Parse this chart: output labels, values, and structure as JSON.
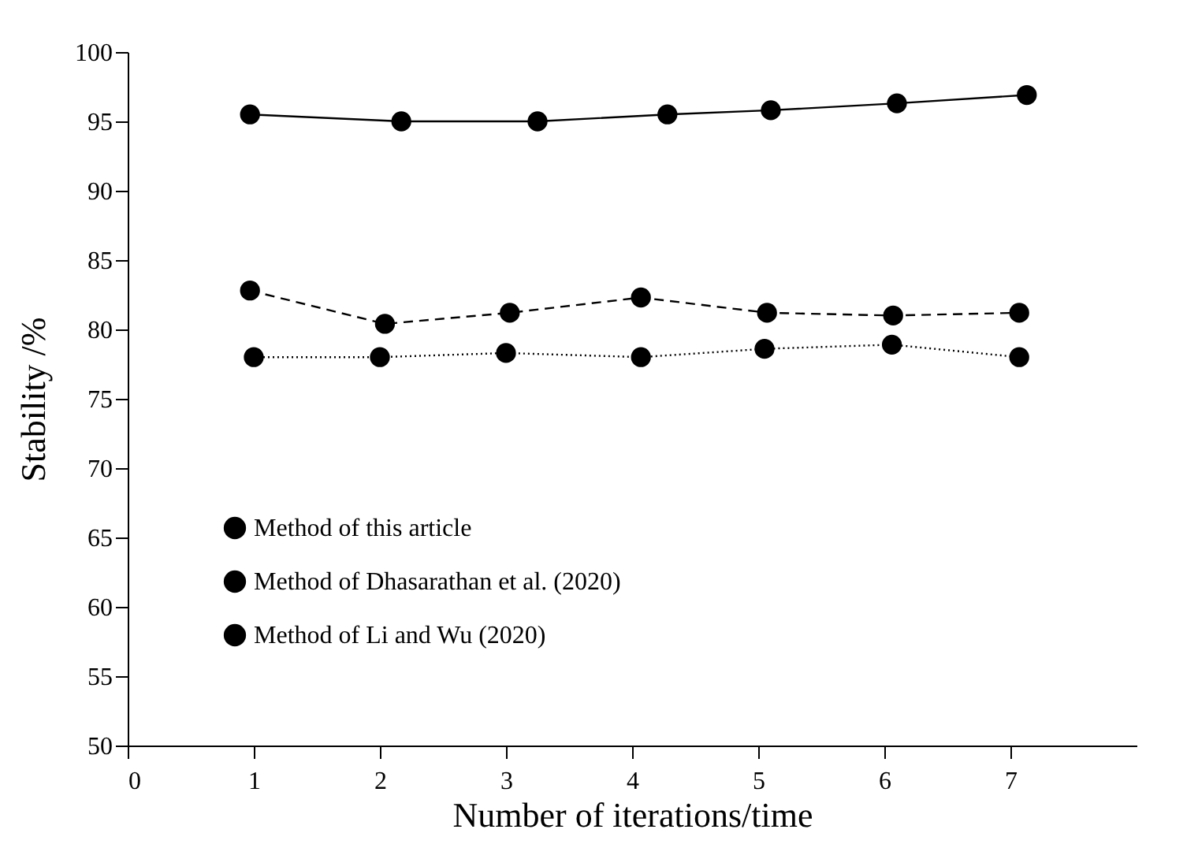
{
  "chart_data": {
    "type": "line",
    "xlabel": "Number of iterations/time",
    "ylabel": "Stability /%",
    "xlim": [
      0,
      8
    ],
    "xticks": [
      0,
      1,
      2,
      3,
      4,
      5,
      6,
      7
    ],
    "ylim": [
      50,
      100
    ],
    "yticks": [
      50,
      55,
      60,
      65,
      70,
      75,
      80,
      85,
      90,
      95,
      100
    ],
    "grid": false,
    "legend": "bottom left",
    "marker": "circle",
    "series": [
      {
        "name": "Method of this article",
        "color": "#000000",
        "line_style": "solid",
        "x": [
          0.97,
          2.17,
          3.25,
          4.28,
          5.1,
          6.1,
          7.13
        ],
        "values": [
          95.5,
          95.0,
          95.0,
          95.5,
          95.8,
          96.3,
          96.9
        ]
      },
      {
        "name": "Method of Dhasarathan et al. (2020)",
        "color": "#000000",
        "line_style": "dashed",
        "x": [
          0.97,
          2.04,
          3.03,
          4.07,
          5.07,
          6.07,
          7.07
        ],
        "values": [
          82.8,
          80.4,
          81.2,
          82.3,
          81.2,
          81.0,
          81.2
        ]
      },
      {
        "name": "Method of Li and Wu (2020)",
        "color": "#000000",
        "line_style": "dotted",
        "x": [
          1.0,
          2.0,
          3.0,
          4.07,
          5.05,
          6.06,
          7.07
        ],
        "values": [
          78.0,
          78.0,
          78.3,
          78.0,
          78.6,
          78.9,
          78.0
        ]
      }
    ]
  }
}
